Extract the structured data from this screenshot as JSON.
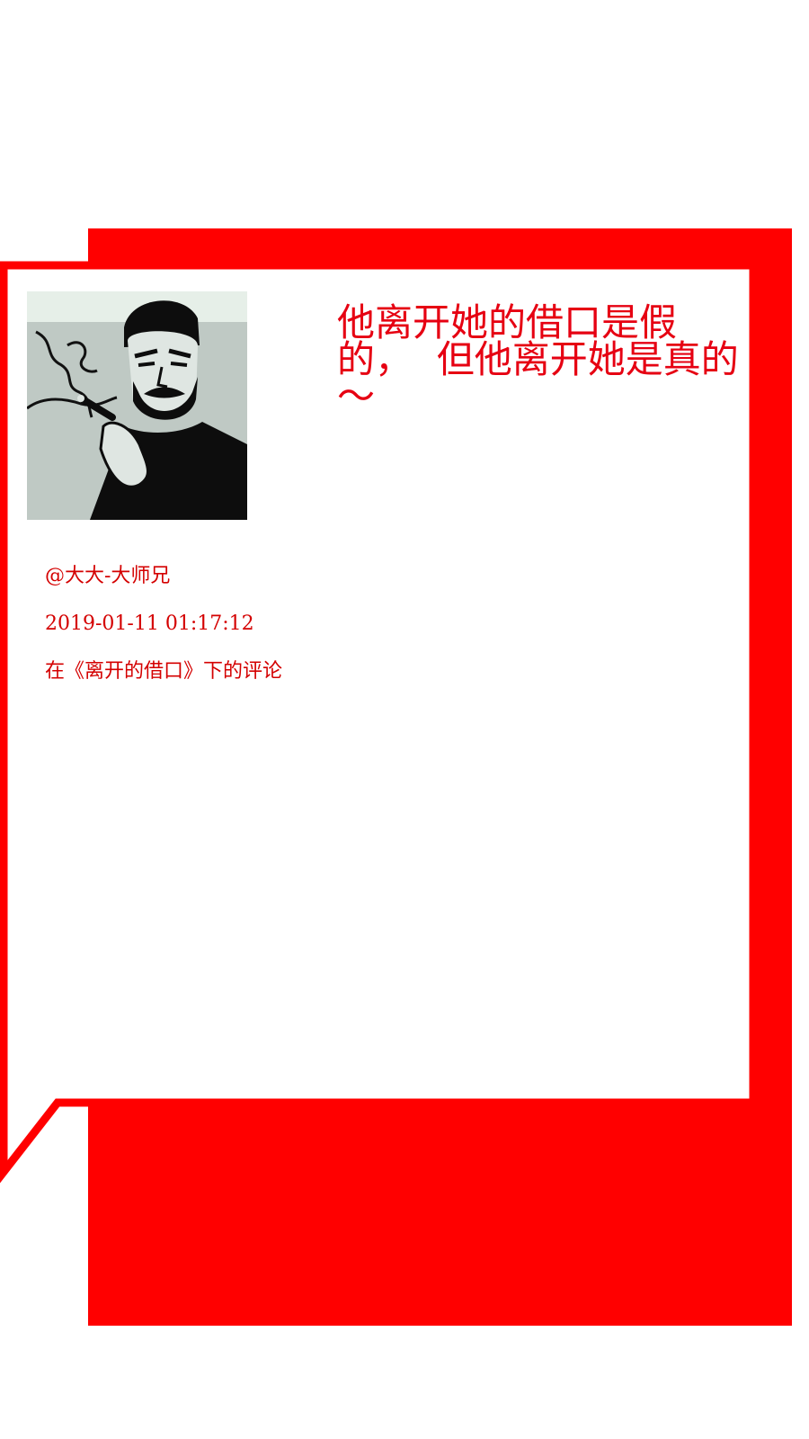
{
  "colors": {
    "accent": "#ff0000",
    "quote_text": "#e60012",
    "meta_text": "#d40000",
    "background": "#ffffff"
  },
  "avatar": {
    "icon": "smoking-man-portrait-icon"
  },
  "quote": {
    "text": "他离开她的借口是假的，  但他离开她是真的～"
  },
  "meta": {
    "username": "@大大-大师兄",
    "timestamp": "2019-01-11 01:17:12",
    "source": "在《离开的借口》下的评论"
  }
}
